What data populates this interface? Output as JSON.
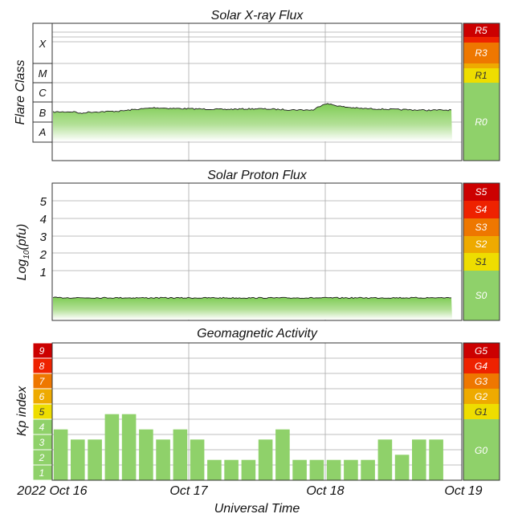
{
  "chart_data": [
    {
      "type": "area",
      "title": "Solar X-ray Flux",
      "ylabel": "Flare Class",
      "flare_classes": [
        "X",
        "M",
        "C",
        "B",
        "A"
      ],
      "scales": [
        {
          "label": "R5",
          "color": "#cc0000"
        },
        {
          "label": "R3",
          "color": "#ee7700"
        },
        {
          "label": "R1",
          "color": "#eedd00"
        },
        {
          "label": "R0",
          "color": "#8fd16a"
        }
      ],
      "x_start": "2022-10-16",
      "x_end": "2022-10-19",
      "series": [
        {
          "values": [
            [
              "2022-10-16 00:00",
              3.4e-07
            ],
            [
              "2022-10-16 04:00",
              3.5e-07
            ],
            [
              "2022-10-16 05:00",
              2.8e-07
            ],
            [
              "2022-10-16 06:00",
              3.3e-07
            ],
            [
              "2022-10-16 12:00",
              3.8e-07
            ],
            [
              "2022-10-16 18:00",
              5.6e-07
            ],
            [
              "2022-10-16 21:00",
              5.2e-07
            ],
            [
              "2022-10-17 00:00",
              5e-07
            ],
            [
              "2022-10-17 06:00",
              4.6e-07
            ],
            [
              "2022-10-17 12:00",
              5e-07
            ],
            [
              "2022-10-17 18:00",
              4.4e-07
            ],
            [
              "2022-10-17 22:00",
              4.3e-07
            ],
            [
              "2022-10-18 00:00",
              9.2e-07
            ],
            [
              "2022-10-18 03:00",
              6.3e-07
            ],
            [
              "2022-10-18 06:00",
              5.2e-07
            ],
            [
              "2022-10-18 12:00",
              4.6e-07
            ],
            [
              "2022-10-18 18:00",
              4.2e-07
            ],
            [
              "2022-10-19 00:00",
              4.3e-07
            ],
            [
              "2022-10-19 06:00",
              4.1e-07
            ],
            [
              "2022-10-19 12:00",
              4.1e-07
            ],
            [
              "2022-10-19 18:00",
              4.2e-07
            ],
            [
              "2022-10-20 00:00",
              4.3e-07
            ]
          ]
        }
      ]
    },
    {
      "type": "area",
      "title": "Solar Proton Flux",
      "ylabel": "Log10(pfu)",
      "ylabel_parts": {
        "pre": "Log",
        "sub": "10",
        "post": "(pfu)"
      },
      "yticks": [
        "1",
        "2",
        "3",
        "4",
        "5"
      ],
      "ylim": [
        -1.6,
        6.2
      ],
      "scales": [
        {
          "label": "S5",
          "color": "#cc0000"
        },
        {
          "label": "S4",
          "color": "#ee2200"
        },
        {
          "label": "S3",
          "color": "#ee7700"
        },
        {
          "label": "S2",
          "color": "#eeaa00"
        },
        {
          "label": "S1",
          "color": "#eedd00"
        },
        {
          "label": "S0",
          "color": "#8fd16a"
        }
      ],
      "x_start": "2022-10-16",
      "x_end": "2022-10-19",
      "series": [
        {
          "values": [
            [
              "2022-10-16 00:00",
              -0.55
            ],
            [
              "2022-10-17 00:00",
              -0.56
            ],
            [
              "2022-10-18 00:00",
              -0.56
            ],
            [
              "2022-10-19 00:00",
              -0.55
            ],
            [
              "2022-10-20 00:00",
              -0.56
            ]
          ]
        }
      ]
    },
    {
      "type": "bar",
      "title": "Geomagnetic Activity",
      "ylabel": "Kp index",
      "yticks": [
        "1",
        "2",
        "3",
        "4",
        "5",
        "6",
        "7",
        "8",
        "9"
      ],
      "ylim": [
        0,
        9
      ],
      "scales": [
        {
          "label": "G5",
          "color": "#cc0000"
        },
        {
          "label": "G4",
          "color": "#ee2200"
        },
        {
          "label": "G3",
          "color": "#ee7700"
        },
        {
          "label": "G2",
          "color": "#eeaa00"
        },
        {
          "label": "G1",
          "color": "#eedd00"
        },
        {
          "label": "G0",
          "color": "#8fd16a"
        }
      ],
      "interval_hours": 3,
      "x_start": "2022-10-16 00:00",
      "values": [
        3.33,
        2.67,
        2.67,
        4.33,
        4.33,
        3.33,
        2.67,
        3.33,
        2.67,
        1.33,
        1.33,
        1.33,
        2.67,
        3.33,
        1.33,
        1.33,
        1.33,
        1.33,
        1.33,
        2.67,
        1.67,
        2.67,
        2.67
      ],
      "xlabel": "Universal Time",
      "xticks": [
        "2022 Oct 16",
        "Oct 17",
        "Oct 18",
        "Oct 19"
      ]
    }
  ],
  "colors": {
    "fill": "#8fd16a",
    "fill_light": "#e3f3d9",
    "line": "#1d1d1d",
    "grid": "#aaaaaa",
    "frame": "#333333",
    "kp_red": "#cc0000",
    "kp_red2": "#ee2200",
    "kp_orange": "#ee7700",
    "kp_amber": "#eeaa00",
    "kp_yellow": "#eedd00"
  }
}
